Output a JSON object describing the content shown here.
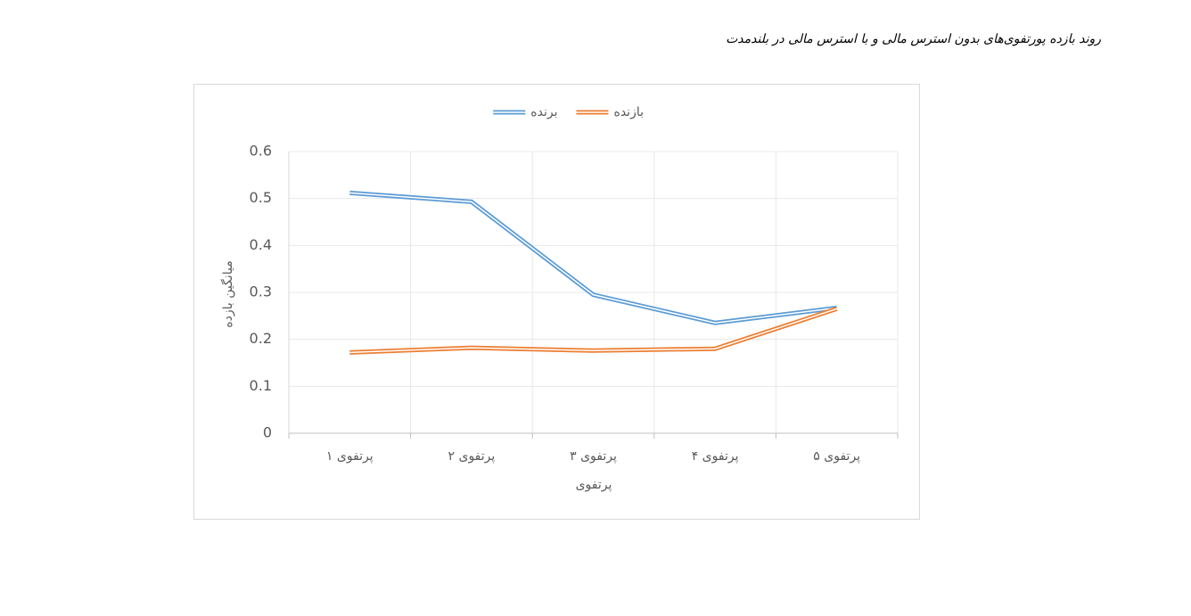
{
  "caption": "روند بازده پورتفوی‌های بدون استرس مالی و با استرس مالی در بلندمدت",
  "chart_data": {
    "type": "line",
    "x_label": "پرتفوی",
    "y_label": "میانگین بازده",
    "categories": [
      "پرتفوی ۱",
      "پرتفوی ۲",
      "پرتفوی ۳",
      "پرتفوی ۴",
      "پرتفوی ۵"
    ],
    "series": [
      {
        "name": "برنده",
        "color": "#5b9bd5",
        "values": [
          0.512,
          0.493,
          0.295,
          0.235,
          0.267
        ]
      },
      {
        "name": "بازنده",
        "color": "#ed7d31",
        "values": [
          0.172,
          0.182,
          0.176,
          0.18,
          0.265
        ]
      }
    ],
    "ylim": [
      0,
      0.6
    ],
    "yticks": [
      0,
      0.1,
      0.2,
      0.3,
      0.4,
      0.5,
      0.6
    ],
    "grid": true,
    "legend": "top"
  }
}
